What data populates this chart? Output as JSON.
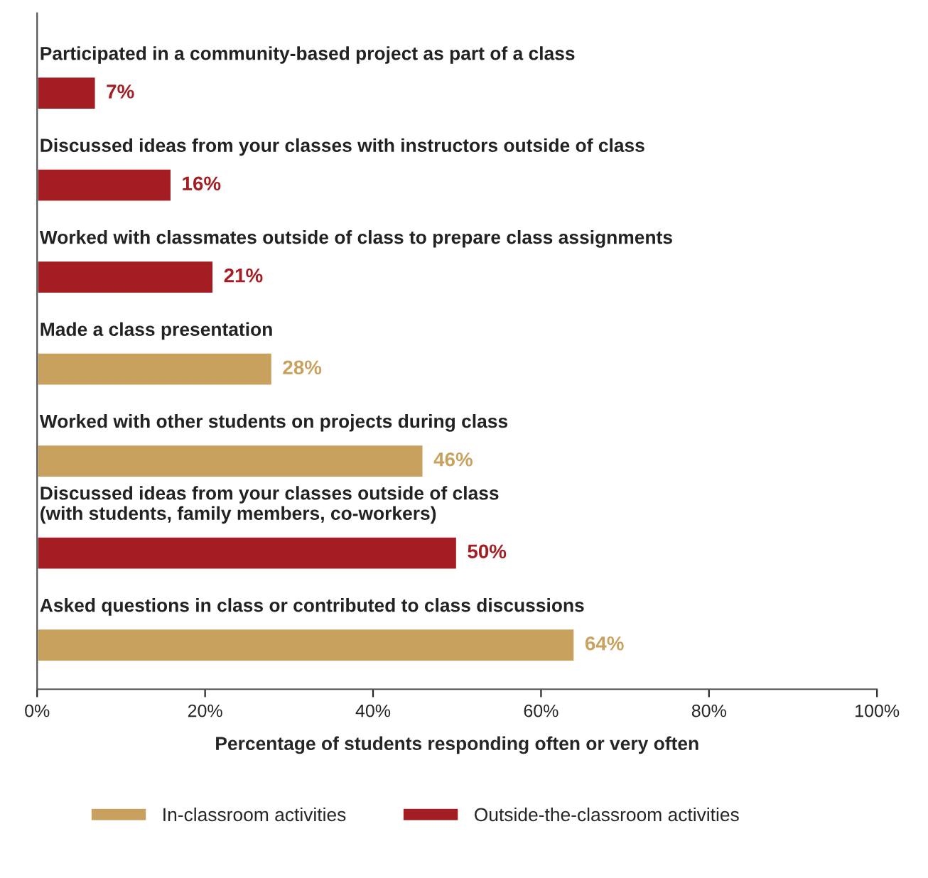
{
  "chart_data": {
    "type": "bar",
    "orientation": "horizontal",
    "stacked": true,
    "categories": [
      "Participated in a community-based project as part of a class",
      "Discussed ideas from your classes with instructors outside of class",
      "Worked with classmates outside of class to prepare class assignments",
      "Made a class presentation",
      "Worked with other students on projects during class",
      "Discussed ideas from your classes outside of class\n(with students, family members, co-workers)",
      "Asked questions in class or contributed to class discussions"
    ],
    "series": [
      {
        "name": "In-classroom activities",
        "color": "#c9a15e",
        "values": [
          null,
          null,
          null,
          28,
          46,
          null,
          64
        ],
        "value_labels": [
          null,
          null,
          null,
          "28%",
          "46%",
          null,
          "64%"
        ]
      },
      {
        "name": "Outside-the-classroom activities",
        "color": "#a31d22",
        "values": [
          7,
          16,
          21,
          null,
          null,
          50,
          null
        ],
        "value_labels": [
          "7%",
          "16%",
          "21%",
          null,
          null,
          "50%",
          null
        ]
      }
    ],
    "xlabel": "Percentage of students responding often or very often",
    "xlim": [
      0,
      100
    ],
    "xticks": [
      {
        "value": 0,
        "label": "0%"
      },
      {
        "value": 20,
        "label": "20%"
      },
      {
        "value": 40,
        "label": "40%"
      },
      {
        "value": 60,
        "label": "60%"
      },
      {
        "value": 80,
        "label": "80%"
      },
      {
        "value": 100,
        "label": "100%"
      }
    ],
    "legend": "bottom",
    "grid": false
  }
}
